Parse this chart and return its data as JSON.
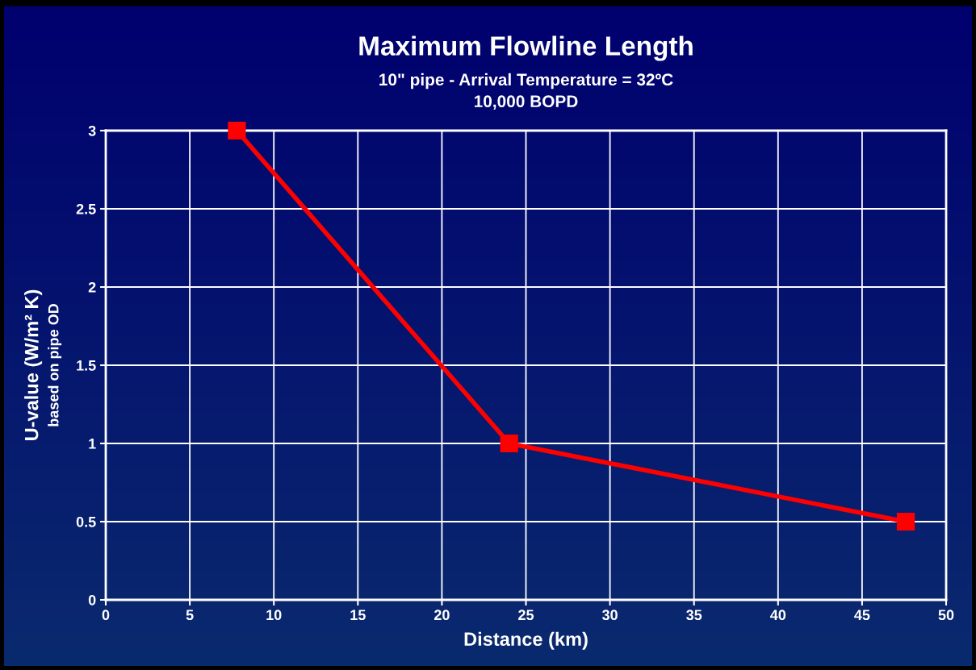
{
  "chart_data": {
    "type": "line",
    "title": "Maximum Flowline Length",
    "subtitle": "10\" pipe - Arrival Temperature = 32ºC\n10,000 BOPD",
    "xlabel": "Distance (km)",
    "ylabel": "U-value (W/m² K)\nbased on pipe OD",
    "x": [
      7.8,
      24,
      47.6
    ],
    "series": [
      {
        "color": "#ff0000",
        "values": [
          3,
          1,
          0.5
        ]
      }
    ],
    "xlim": [
      0,
      50
    ],
    "xticks": [
      0,
      5,
      10,
      15,
      20,
      25,
      30,
      35,
      40,
      45,
      50
    ],
    "ylim": [
      0,
      3
    ],
    "yticks": [
      0,
      0.5,
      1,
      1.5,
      2,
      2.5,
      3
    ],
    "grid": true,
    "legend": false,
    "marker": "square",
    "line_style": "solid"
  }
}
